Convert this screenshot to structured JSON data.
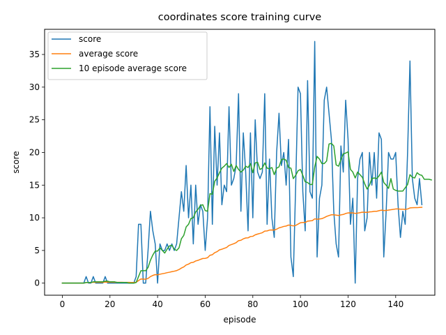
{
  "chart_data": {
    "type": "line",
    "title": "coordinates score training curve",
    "xlabel": "episode",
    "ylabel": "score",
    "xlim": [
      -7.45,
      156.45
    ],
    "ylim": [
      -1.85,
      38.85
    ],
    "xticks": [
      0,
      20,
      40,
      60,
      80,
      100,
      120,
      140
    ],
    "yticks": [
      0,
      5,
      10,
      15,
      20,
      25,
      30,
      35
    ],
    "grid": false,
    "legend_position": "top-left",
    "series": [
      {
        "name": "score",
        "color": "#1f77b4",
        "values": [
          0,
          0,
          0,
          0,
          0,
          0,
          0,
          0,
          0,
          0,
          1,
          0,
          0,
          1,
          0,
          0,
          0,
          0,
          1,
          0,
          0,
          0,
          0,
          0,
          0,
          0,
          0,
          0,
          0,
          0,
          0,
          1,
          9,
          9,
          0,
          0,
          5,
          11,
          8,
          6,
          0,
          6,
          5,
          5,
          6,
          5,
          6,
          5,
          6,
          10,
          14,
          11,
          18,
          10,
          15,
          6,
          15,
          9,
          12,
          11,
          5,
          10,
          27,
          9,
          24,
          15,
          23,
          12,
          15,
          14,
          27,
          15,
          16,
          18,
          29,
          11,
          23,
          17,
          8,
          23,
          10,
          25,
          17,
          16,
          17,
          29,
          9,
          19,
          10,
          7,
          20,
          26,
          18,
          20,
          15,
          22,
          4,
          1,
          15,
          30,
          29,
          14,
          8,
          31,
          14,
          13,
          37,
          4,
          13,
          15,
          28,
          30,
          26,
          22,
          11,
          6,
          4,
          21,
          17,
          28,
          22,
          9,
          13,
          0,
          16,
          19,
          20,
          8,
          10,
          20,
          15,
          20,
          13,
          23,
          22,
          4,
          11,
          20,
          19,
          19,
          20,
          12,
          7,
          11,
          9,
          20,
          34,
          16,
          13,
          12,
          16,
          12
        ]
      },
      {
        "name": "average score",
        "color": "#ff7f0e",
        "values": [
          0,
          0,
          0,
          0,
          0,
          0,
          0,
          0,
          0,
          0,
          0.09,
          0.08,
          0.08,
          0.14,
          0.13,
          0.13,
          0.12,
          0.11,
          0.16,
          0.15,
          0.14,
          0.14,
          0.13,
          0.13,
          0.12,
          0.12,
          0.11,
          0.11,
          0.11,
          0.1,
          0.1,
          0.13,
          0.39,
          0.64,
          0.62,
          0.6,
          0.72,
          1,
          1.18,
          1.3,
          1.27,
          1.36,
          1.44,
          1.51,
          1.6,
          1.67,
          1.76,
          1.83,
          1.92,
          2.08,
          2.31,
          2.48,
          2.78,
          2.91,
          3.13,
          3.18,
          3.39,
          3.49,
          3.64,
          3.77,
          3.79,
          3.89,
          4.27,
          4.35,
          4.66,
          4.82,
          5.09,
          5.19,
          5.33,
          5.46,
          5.77,
          5.9,
          6.04,
          6.2,
          6.5,
          6.56,
          6.78,
          6.91,
          6.93,
          7.13,
          7.17,
          7.39,
          7.51,
          7.61,
          7.72,
          7.97,
          7.99,
          8.12,
          8.14,
          8.13,
          8.26,
          8.46,
          8.56,
          8.68,
          8.74,
          8.89,
          8.84,
          8.76,
          8.83,
          9.04,
          9.24,
          9.29,
          9.28,
          9.49,
          9.53,
          9.57,
          9.84,
          9.78,
          9.82,
          9.87,
          10.03,
          10.21,
          10.35,
          10.46,
          10.46,
          10.41,
          10.35,
          10.45,
          10.51,
          10.66,
          10.75,
          10.74,
          10.76,
          10.67,
          10.71,
          10.78,
          10.86,
          10.84,
          10.83,
          10.9,
          10.93,
          10.99,
          11,
          11.09,
          11.17,
          11.12,
          11.12,
          11.18,
          11.24,
          11.29,
          11.35,
          11.35,
          11.32,
          11.31,
          11.29,
          11.35,
          11.51,
          11.54,
          11.55,
          11.55,
          11.58,
          11.6
        ]
      },
      {
        "name": "10 episode average score",
        "color": "#2ca02c",
        "values": [
          0,
          0,
          0,
          0,
          0,
          0,
          0,
          0,
          0,
          0,
          0.1,
          0.1,
          0.1,
          0.2,
          0.2,
          0.2,
          0.2,
          0.2,
          0.3,
          0.3,
          0.2,
          0.2,
          0.2,
          0.1,
          0.1,
          0.1,
          0.1,
          0.1,
          0,
          0,
          0,
          0.1,
          1,
          1.9,
          1.9,
          1.9,
          2.4,
          3.5,
          4.3,
          4.9,
          4.9,
          5.4,
          5,
          4.6,
          5.2,
          5.7,
          5.8,
          5.2,
          5,
          5.4,
          6.8,
          7.3,
          8.6,
          9,
          9.9,
          10,
          10.9,
          11.3,
          11.9,
          12,
          11.1,
          11,
          13.7,
          13.6,
          15.6,
          16.1,
          16.9,
          17.6,
          17.9,
          18.3,
          17.7,
          18.2,
          17.1,
          18,
          17.4,
          17,
          17.3,
          17.9,
          17.7,
          18.3,
          16.9,
          18.4,
          18.5,
          17.4,
          17.6,
          18.4,
          17.6,
          17.5,
          17.7,
          16.6,
          17.6,
          17.8,
          18.9,
          19,
          18.8,
          17.7,
          17.6,
          16,
          16.5,
          17.2,
          17.4,
          16.5,
          15.5,
          15.4,
          15.1,
          15.1,
          17.8,
          19.4,
          19,
          18.3,
          18.3,
          18.7,
          21.3,
          21.4,
          21,
          18.1,
          17.9,
          18.9,
          19.8,
          19.9,
          20.1,
          17.4,
          17,
          16.1,
          17,
          16.6,
          16.2,
          15.2,
          14.4,
          15,
          16,
          16.1,
          16,
          16.4,
          17,
          15.4,
          15,
          14.5,
          16,
          14.4,
          14.2,
          14.1,
          14.1,
          14.1,
          14.6,
          15.1,
          16.6,
          16.2,
          16.1,
          16.9,
          16.6,
          16.5,
          15.9,
          15.9,
          15.9,
          15.8
        ]
      }
    ]
  }
}
